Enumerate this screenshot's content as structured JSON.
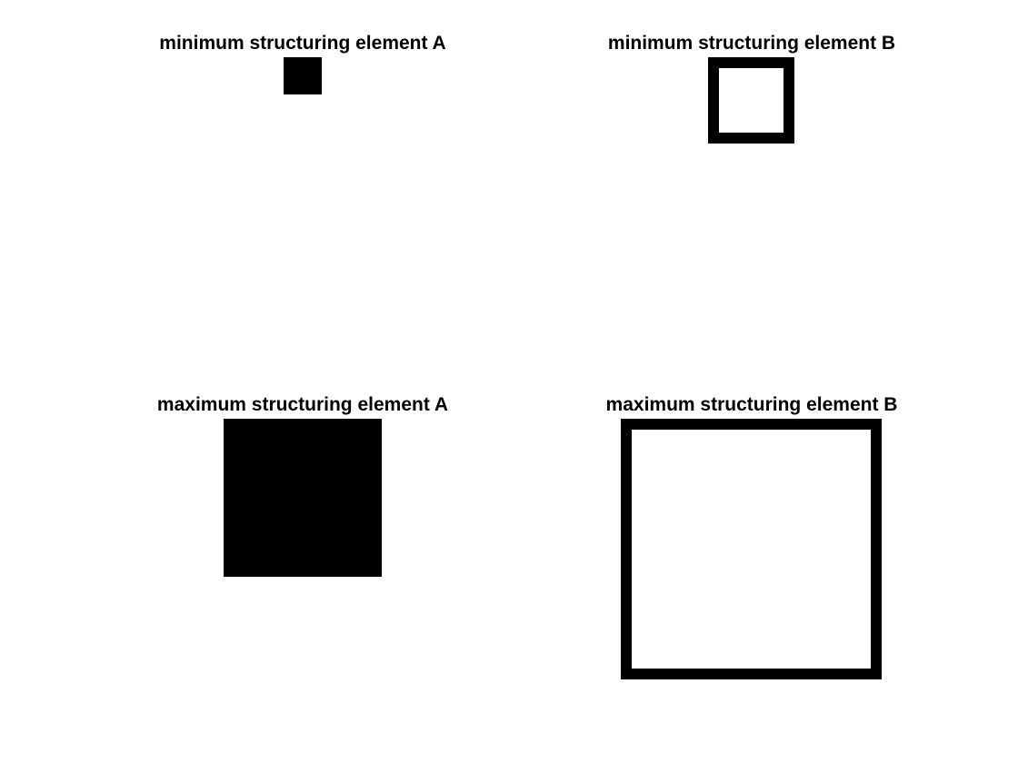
{
  "colors": {
    "shape": "#000000",
    "background": "#ffffff"
  },
  "panels": [
    {
      "title": "minimum structuring element A",
      "shape": "filled-square"
    },
    {
      "title": "minimum structuring element B",
      "shape": "square-outline"
    },
    {
      "title": "maximum structuring element A",
      "shape": "filled-square"
    },
    {
      "title": "maximum structuring element B",
      "shape": "square-outline"
    }
  ]
}
